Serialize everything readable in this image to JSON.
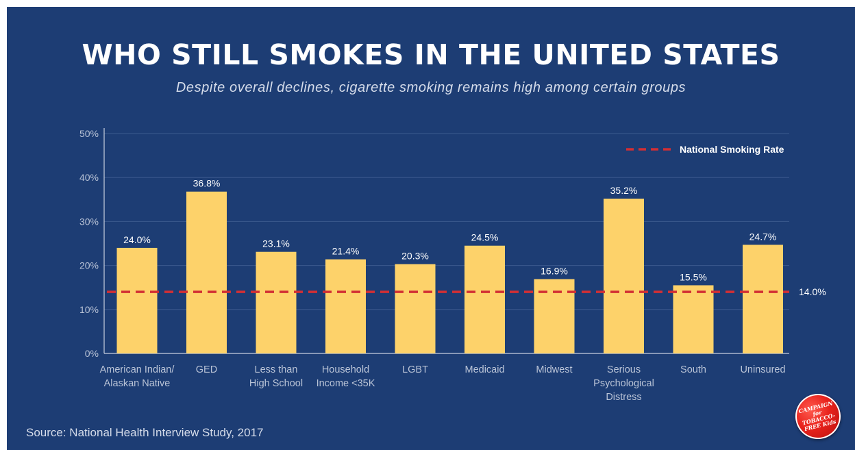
{
  "header": {
    "title": "WHO STILL SMOKES IN THE UNITED STATES",
    "subtitle": "Despite overall declines, cigarette smoking remains high among certain groups"
  },
  "footer": {
    "source": "Source: National Health Interview Study, 2017"
  },
  "logo": {
    "text": "CAMPAIGN for TOBACCO-FREE Kids"
  },
  "colors": {
    "background": "#1d3d74",
    "bar": "#fdd26a",
    "reference_line": "#d22f34",
    "text": "#ffffff",
    "muted_text": "#b9c3d6",
    "grid": "#3c5a8e"
  },
  "chart_data": {
    "type": "bar",
    "title": "WHO STILL SMOKES IN THE UNITED STATES",
    "subtitle": "Despite overall declines, cigarette smoking remains high among certain groups",
    "categories": [
      [
        "American Indian/",
        "Alaskan Native"
      ],
      [
        "GED"
      ],
      [
        "Less than",
        "High School"
      ],
      [
        "Household",
        "Income <35K"
      ],
      [
        "LGBT"
      ],
      [
        "Medicaid"
      ],
      [
        "Midwest"
      ],
      [
        "Serious",
        "Psychological",
        "Distress"
      ],
      [
        "South"
      ],
      [
        "Uninsured"
      ]
    ],
    "values": [
      24.0,
      36.8,
      23.1,
      21.4,
      20.3,
      24.5,
      16.9,
      35.2,
      15.5,
      24.7
    ],
    "value_labels": [
      "24.0%",
      "36.8%",
      "23.1%",
      "21.4%",
      "20.3%",
      "24.5%",
      "16.9%",
      "35.2%",
      "15.5%",
      "24.7%"
    ],
    "ylim": [
      0,
      50
    ],
    "yticks": [
      0,
      10,
      20,
      30,
      40,
      50
    ],
    "ytick_labels": [
      "0%",
      "10%",
      "20%",
      "30%",
      "40%",
      "50%"
    ],
    "grid": true,
    "reference_line": {
      "name": "National Smoking Rate",
      "value": 14.0,
      "label": "14.0%",
      "style": "dashed"
    },
    "legend": {
      "placement": "top-right",
      "entries": [
        "National Smoking Rate"
      ]
    }
  }
}
